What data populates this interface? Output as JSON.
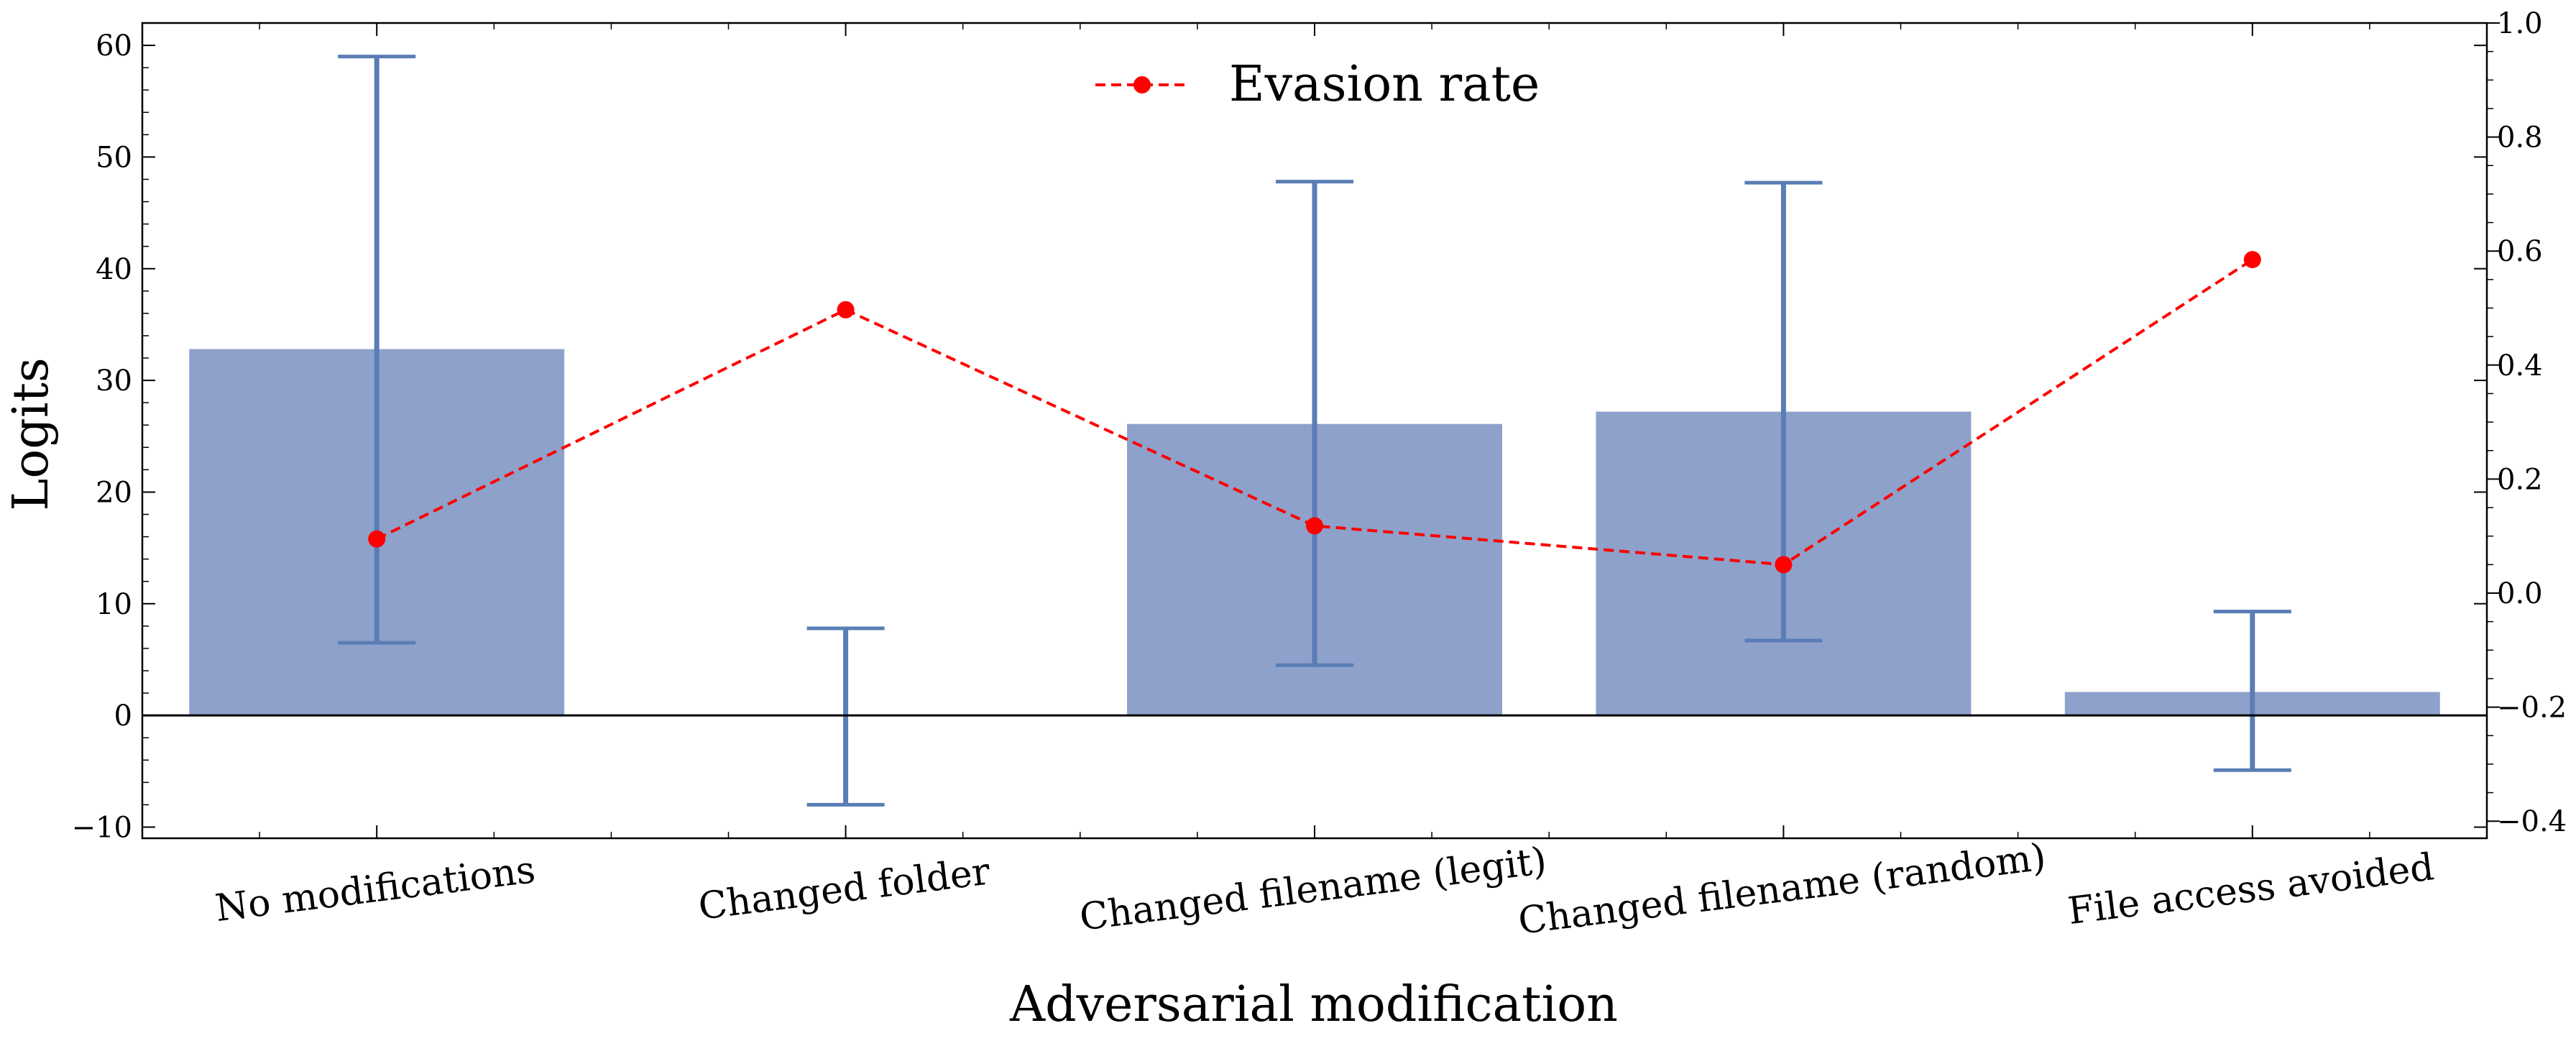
{
  "chart_data": {
    "type": "bar",
    "categories": [
      "No modifications",
      "Changed folder",
      "Changed filename (legit)",
      "Changed filename (random)",
      "File access avoided"
    ],
    "bars": {
      "values": [
        32.8,
        0.0,
        26.1,
        27.2,
        2.1
      ],
      "error_low": [
        6.5,
        -8.0,
        4.5,
        6.7,
        -4.9
      ],
      "error_high": [
        59.0,
        7.8,
        47.8,
        47.7,
        9.3
      ],
      "color": "#8da1cb",
      "error_color": "#5a7db5"
    },
    "line_series": {
      "name": "Evasion rate",
      "values": [
        0.095,
        0.497,
        0.118,
        0.05,
        0.585
      ],
      "color": "#ff0000",
      "style": "dashed"
    },
    "xlabel": "Adversarial modification",
    "ylabel": "Logits",
    "ylim": [
      -11,
      62
    ],
    "y2lim": [
      -0.43,
      1.0
    ],
    "yticks": [
      "−10",
      "0",
      "10",
      "20",
      "30",
      "40",
      "50",
      "60"
    ],
    "y2ticks": [
      "−0.4",
      "−0.2",
      "0.0",
      "0.2",
      "0.4",
      "0.6",
      "0.8",
      "1.0"
    ],
    "zero_line": true,
    "grid": false,
    "legend_position": "top-center"
  }
}
